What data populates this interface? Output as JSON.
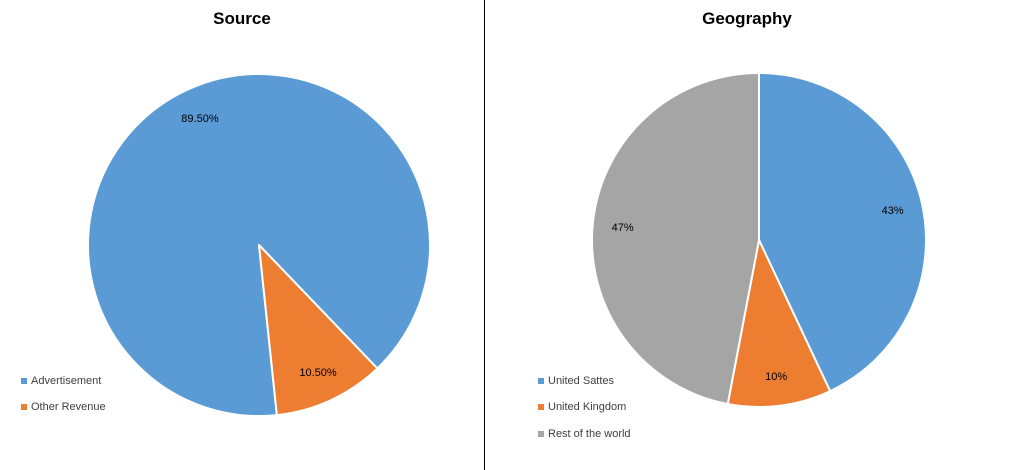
{
  "chart_data": [
    {
      "type": "pie",
      "title": "Source",
      "categories": [
        "Advertisement",
        "Other Revenue"
      ],
      "values": [
        89.5,
        10.5
      ],
      "data_labels": [
        "89.50%",
        "10.50%"
      ],
      "colors": [
        "#5B9BD5",
        "#ED7D31"
      ],
      "legend_position": "bottom-left"
    },
    {
      "type": "pie",
      "title": "Geography",
      "categories": [
        "United Sattes",
        "United Kingdom",
        "Rest of the world"
      ],
      "values": [
        43,
        10,
        47
      ],
      "data_labels": [
        "43%",
        "10%",
        "47%"
      ],
      "colors": [
        "#5B9BD5",
        "#ED7D31",
        "#A5A5A5"
      ],
      "legend_position": "bottom-left"
    }
  ]
}
